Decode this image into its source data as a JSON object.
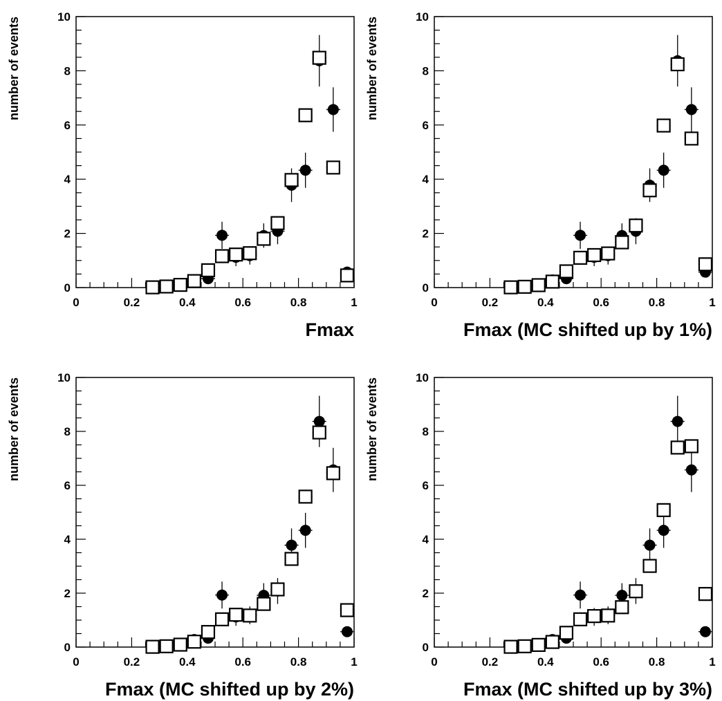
{
  "chart_data": [
    {
      "type": "scatter",
      "xlabel": "Fmax",
      "ylabel": "number of events",
      "xlim": [
        0,
        1
      ],
      "ylim": [
        0,
        10
      ],
      "x_ticks": [
        "0",
        "0.2",
        "0.4",
        "0.6",
        "0.8",
        "1"
      ],
      "y_ticks": [
        "0",
        "2",
        "4",
        "6",
        "8",
        "10"
      ],
      "grid": false,
      "series": [
        {
          "marker": "filled-circle",
          "x": [
            0.425,
            0.475,
            0.525,
            0.575,
            0.625,
            0.675,
            0.725,
            0.775,
            0.825,
            0.875,
            0.925,
            0.975
          ],
          "y": [
            0.28,
            0.33,
            1.93,
            1.12,
            1.18,
            1.92,
            2.08,
            3.78,
            4.33,
            8.37,
            6.57,
            0.57
          ],
          "err": [
            0.15,
            0.15,
            0.5,
            0.33,
            0.33,
            0.45,
            0.48,
            0.62,
            0.65,
            0.95,
            0.82,
            0.12
          ]
        },
        {
          "marker": "open-square",
          "x": [
            0.275,
            0.325,
            0.375,
            0.425,
            0.475,
            0.525,
            0.575,
            0.625,
            0.675,
            0.725,
            0.775,
            0.825,
            0.875,
            0.925,
            0.975
          ],
          "y": [
            0.01,
            0.04,
            0.1,
            0.24,
            0.64,
            1.16,
            1.22,
            1.27,
            1.8,
            2.38,
            3.97,
            6.36,
            8.48,
            4.43,
            0.45
          ]
        }
      ]
    },
    {
      "type": "scatter",
      "xlabel": "Fmax (MC shifted up by 1%)",
      "ylabel": "number of events",
      "xlim": [
        0,
        1
      ],
      "ylim": [
        0,
        10
      ],
      "x_ticks": [
        "0",
        "0.2",
        "0.4",
        "0.6",
        "0.8",
        "1"
      ],
      "y_ticks": [
        "0",
        "2",
        "4",
        "6",
        "8",
        "10"
      ],
      "grid": false,
      "series": [
        {
          "marker": "filled-circle",
          "x": [
            0.425,
            0.475,
            0.525,
            0.575,
            0.625,
            0.675,
            0.725,
            0.775,
            0.825,
            0.875,
            0.925,
            0.975
          ],
          "y": [
            0.28,
            0.33,
            1.93,
            1.12,
            1.18,
            1.92,
            2.08,
            3.78,
            4.33,
            8.37,
            6.57,
            0.57
          ],
          "err": [
            0.15,
            0.15,
            0.5,
            0.33,
            0.33,
            0.45,
            0.48,
            0.62,
            0.65,
            0.95,
            0.82,
            0.12
          ]
        },
        {
          "marker": "open-square",
          "x": [
            0.275,
            0.325,
            0.375,
            0.425,
            0.475,
            0.525,
            0.575,
            0.625,
            0.675,
            0.725,
            0.775,
            0.825,
            0.875,
            0.925,
            0.975
          ],
          "y": [
            0.01,
            0.03,
            0.09,
            0.22,
            0.6,
            1.1,
            1.2,
            1.26,
            1.67,
            2.29,
            3.59,
            5.98,
            8.24,
            5.5,
            0.86
          ]
        }
      ]
    },
    {
      "type": "scatter",
      "xlabel": "Fmax (MC shifted up by 2%)",
      "ylabel": "number of events",
      "xlim": [
        0,
        1
      ],
      "ylim": [
        0,
        10
      ],
      "x_ticks": [
        "0",
        "0.2",
        "0.4",
        "0.6",
        "0.8",
        "1"
      ],
      "y_ticks": [
        "0",
        "2",
        "4",
        "6",
        "8",
        "10"
      ],
      "grid": false,
      "series": [
        {
          "marker": "filled-circle",
          "x": [
            0.425,
            0.475,
            0.525,
            0.575,
            0.625,
            0.675,
            0.725,
            0.775,
            0.825,
            0.875,
            0.925,
            0.975
          ],
          "y": [
            0.28,
            0.33,
            1.93,
            1.12,
            1.18,
            1.92,
            2.08,
            3.78,
            4.33,
            8.37,
            6.57,
            0.57
          ],
          "err": [
            0.15,
            0.15,
            0.5,
            0.33,
            0.33,
            0.45,
            0.48,
            0.62,
            0.65,
            0.95,
            0.82,
            0.12
          ]
        },
        {
          "marker": "open-square",
          "x": [
            0.275,
            0.325,
            0.375,
            0.425,
            0.475,
            0.525,
            0.575,
            0.625,
            0.675,
            0.725,
            0.775,
            0.825,
            0.875,
            0.925,
            0.975
          ],
          "y": [
            0.01,
            0.03,
            0.09,
            0.2,
            0.56,
            1.03,
            1.2,
            1.17,
            1.6,
            2.14,
            3.27,
            5.58,
            7.96,
            6.45,
            1.37
          ]
        }
      ]
    },
    {
      "type": "scatter",
      "xlabel": "Fmax (MC shifted up by 3%)",
      "ylabel": "number of events",
      "xlim": [
        0,
        1
      ],
      "ylim": [
        0,
        10
      ],
      "x_ticks": [
        "0",
        "0.2",
        "0.4",
        "0.6",
        "0.8",
        "1"
      ],
      "y_ticks": [
        "0",
        "2",
        "4",
        "6",
        "8",
        "10"
      ],
      "grid": false,
      "series": [
        {
          "marker": "filled-circle",
          "x": [
            0.425,
            0.475,
            0.525,
            0.575,
            0.625,
            0.675,
            0.725,
            0.775,
            0.825,
            0.875,
            0.925,
            0.975
          ],
          "y": [
            0.28,
            0.33,
            1.93,
            1.12,
            1.18,
            1.92,
            2.08,
            3.78,
            4.33,
            8.37,
            6.57,
            0.57
          ],
          "err": [
            0.15,
            0.15,
            0.5,
            0.33,
            0.33,
            0.45,
            0.48,
            0.62,
            0.65,
            0.95,
            0.82,
            0.12
          ]
        },
        {
          "marker": "open-square",
          "x": [
            0.275,
            0.325,
            0.375,
            0.425,
            0.475,
            0.525,
            0.575,
            0.625,
            0.675,
            0.725,
            0.775,
            0.825,
            0.875,
            0.925,
            0.975
          ],
          "y": [
            0.01,
            0.03,
            0.08,
            0.19,
            0.53,
            1.03,
            1.15,
            1.17,
            1.48,
            2.07,
            3.01,
            5.08,
            7.4,
            7.45,
            1.97
          ]
        }
      ]
    }
  ]
}
